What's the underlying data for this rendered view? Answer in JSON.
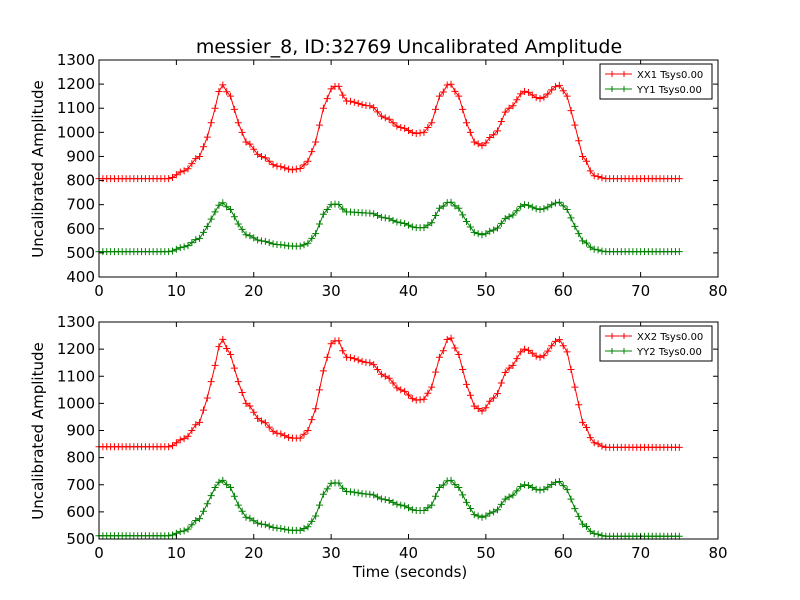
{
  "chart_data": [
    {
      "type": "line",
      "title": "messier_8, ID:32769 Uncalibrated Amplitude",
      "xlabel": "",
      "ylabel": "Uncalibrated Amplitude",
      "xlim": [
        0,
        80
      ],
      "ylim": [
        400,
        1300
      ],
      "xticks": [
        "0",
        "10",
        "20",
        "30",
        "40",
        "50",
        "60",
        "70",
        "80"
      ],
      "yticks": [
        "400",
        "500",
        "600",
        "700",
        "800",
        "900",
        "1000",
        "1100",
        "1200",
        "1300"
      ],
      "legend_position": "top-right",
      "grid": false,
      "series": [
        {
          "name": "XX1 Tsys0.00",
          "color": "#ff0000",
          "marker": "+",
          "x": [
            0,
            9,
            11,
            13,
            14,
            15,
            15.8,
            17,
            18,
            19,
            21,
            23,
            25,
            26,
            27,
            28,
            29,
            30,
            30.8,
            32,
            35,
            37,
            39,
            41,
            42,
            43,
            44,
            45.3,
            46.5,
            47.5,
            48.5,
            49.5,
            51,
            53,
            55,
            57,
            59.5,
            60.5,
            61.5,
            62.5,
            64,
            65.5,
            67,
            75
          ],
          "y": [
            808,
            808,
            840,
            900,
            980,
            1100,
            1200,
            1150,
            1040,
            960,
            900,
            860,
            845,
            850,
            880,
            960,
            1100,
            1180,
            1195,
            1130,
            1110,
            1060,
            1020,
            995,
            1000,
            1040,
            1150,
            1203,
            1150,
            1040,
            960,
            945,
            990,
            1100,
            1170,
            1140,
            1195,
            1150,
            1030,
            900,
            820,
            808,
            808,
            808
          ]
        },
        {
          "name": "YY1 Tsys0.00",
          "color": "#008000",
          "marker": "+",
          "x": [
            0,
            9,
            11,
            13,
            14,
            15,
            15.8,
            17,
            18,
            19,
            21,
            23,
            25,
            26,
            27,
            28,
            29,
            30,
            30.8,
            32,
            35,
            37,
            39,
            41,
            42,
            43,
            44,
            45.3,
            46.5,
            47.5,
            48.5,
            49.5,
            51,
            53,
            55,
            57,
            59.5,
            60.5,
            61.5,
            62.5,
            64,
            65.5,
            67,
            75
          ],
          "y": [
            505,
            505,
            525,
            560,
            610,
            670,
            710,
            680,
            620,
            575,
            550,
            535,
            528,
            528,
            540,
            580,
            660,
            700,
            703,
            670,
            665,
            645,
            625,
            605,
            605,
            625,
            685,
            712,
            685,
            630,
            585,
            575,
            595,
            650,
            700,
            680,
            710,
            680,
            610,
            550,
            515,
            505,
            505,
            505
          ]
        }
      ]
    },
    {
      "type": "line",
      "title": "",
      "xlabel": "Time (seconds)",
      "ylabel": "Uncalibrated Amplitude",
      "xlim": [
        0,
        80
      ],
      "ylim": [
        500,
        1300
      ],
      "xticks": [
        "0",
        "10",
        "20",
        "30",
        "40",
        "50",
        "60",
        "70",
        "80"
      ],
      "yticks": [
        "500",
        "600",
        "700",
        "800",
        "900",
        "1000",
        "1100",
        "1200",
        "1300"
      ],
      "legend_position": "top-right",
      "grid": false,
      "series": [
        {
          "name": "XX2 Tsys0.00",
          "color": "#ff0000",
          "marker": "+",
          "x": [
            0,
            9,
            11,
            13,
            14,
            15,
            15.8,
            17,
            18,
            19,
            21,
            23,
            25,
            26,
            27,
            28,
            29,
            30,
            30.8,
            32,
            35,
            37,
            39,
            41,
            42,
            43,
            44,
            45.3,
            46.5,
            47.5,
            48.5,
            49.5,
            51,
            53,
            55,
            57,
            59.5,
            60.5,
            61.5,
            62.5,
            64,
            65.5,
            67,
            75
          ],
          "y": [
            840,
            840,
            870,
            930,
            1020,
            1140,
            1240,
            1180,
            1080,
            1000,
            935,
            890,
            872,
            872,
            900,
            980,
            1120,
            1220,
            1235,
            1170,
            1150,
            1100,
            1050,
            1012,
            1015,
            1060,
            1170,
            1245,
            1180,
            1070,
            990,
            972,
            1020,
            1130,
            1200,
            1170,
            1235,
            1190,
            1060,
            930,
            855,
            838,
            838,
            838
          ]
        },
        {
          "name": "YY2 Tsys0.00",
          "color": "#008000",
          "marker": "+",
          "x": [
            0,
            9,
            11,
            13,
            14,
            15,
            15.8,
            17,
            18,
            19,
            21,
            23,
            25,
            26,
            27,
            28,
            29,
            30,
            30.8,
            32,
            35,
            37,
            39,
            41,
            42,
            43,
            44,
            45.3,
            46.5,
            47.5,
            48.5,
            49.5,
            51,
            53,
            55,
            57,
            59.5,
            60.5,
            61.5,
            62.5,
            64,
            65.5,
            67,
            75
          ],
          "y": [
            512,
            512,
            530,
            575,
            630,
            690,
            718,
            690,
            625,
            580,
            555,
            540,
            532,
            532,
            545,
            585,
            665,
            705,
            708,
            675,
            665,
            645,
            625,
            605,
            605,
            625,
            690,
            718,
            690,
            635,
            590,
            580,
            600,
            655,
            700,
            680,
            712,
            682,
            612,
            555,
            520,
            510,
            510,
            510
          ]
        }
      ]
    }
  ]
}
